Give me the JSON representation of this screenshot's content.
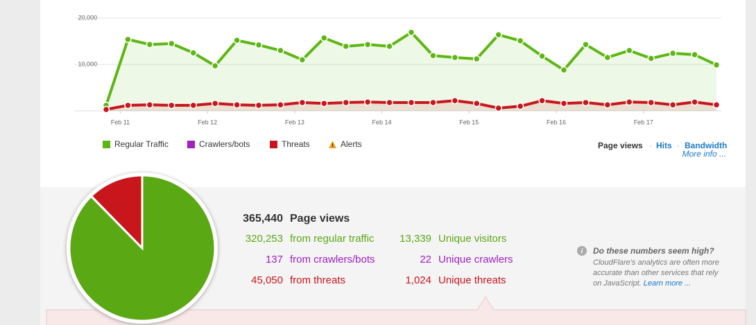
{
  "chart_data": {
    "type": "line",
    "categories": [
      null,
      "Feb 11",
      null,
      null,
      null,
      "Feb 12",
      null,
      null,
      null,
      "Feb 13",
      null,
      null,
      null,
      "Feb 14",
      null,
      null,
      null,
      "Feb 15",
      null,
      null,
      null,
      "Feb 16",
      null,
      null,
      null,
      "Feb 17",
      null,
      null,
      null
    ],
    "series": [
      {
        "color": "#5db713",
        "values": [
          1200,
          15400,
          14300,
          14500,
          12500,
          9700,
          15200,
          14200,
          13000,
          11000,
          15700,
          13900,
          14300,
          13900,
          16900,
          11900,
          11500,
          11200,
          16400,
          15100,
          11800,
          8800,
          14300,
          11500,
          13000,
          11300,
          12400,
          12100,
          9900
        ]
      },
      {
        "color": "#c8161d",
        "values": [
          300,
          1200,
          1300,
          1200,
          1200,
          1600,
          1300,
          1200,
          1300,
          1800,
          1600,
          1800,
          1900,
          1800,
          1800,
          1800,
          2200,
          1600,
          600,
          1000,
          2200,
          1600,
          1800,
          1300,
          1900,
          1800,
          1300,
          1900,
          1300
        ]
      }
    ],
    "ylim": [
      0,
      20000
    ],
    "yticks": [
      {
        "value": 10000,
        "label": "10,000"
      },
      {
        "value": 20000,
        "label": "20,000"
      }
    ],
    "grid": true,
    "legend": [
      {
        "name": "Regular Traffic",
        "color": "#5db713"
      },
      {
        "name": "Crawlers/bots",
        "color": "#a020c0"
      },
      {
        "name": "Threats",
        "color": "#c8161d"
      },
      {
        "name": "Alerts"
      }
    ]
  },
  "tabs": {
    "active": "Page views",
    "links": [
      "Hits",
      "Bandwidth"
    ],
    "more": "More info ..."
  },
  "stats": {
    "total": {
      "value": 365440,
      "label": "365,440"
    },
    "total_text": "Page views",
    "rows": [
      {
        "value": 320253,
        "label": "320,253",
        "text": "from regular traffic",
        "color": "#5aa814"
      },
      {
        "value": 137,
        "label": "137",
        "text": "from crawlers/bots",
        "color": "#a020c0"
      },
      {
        "value": 45050,
        "label": "45,050",
        "text": "from threats",
        "color": "#c8161d"
      }
    ],
    "unique": [
      {
        "value": 13339,
        "label": "13,339",
        "text": "Unique visitors"
      },
      {
        "value": 22,
        "label": "22",
        "text": "Unique crawlers"
      },
      {
        "value": 1024,
        "label": "1,024",
        "text": "Unique threats"
      }
    ]
  },
  "info": {
    "title": "Do these numbers seem high?",
    "lines": [
      "CloudFlare's analytics are often more",
      "accurate than other services that rely",
      "on JavaScript."
    ],
    "link": "Learn more ..."
  }
}
